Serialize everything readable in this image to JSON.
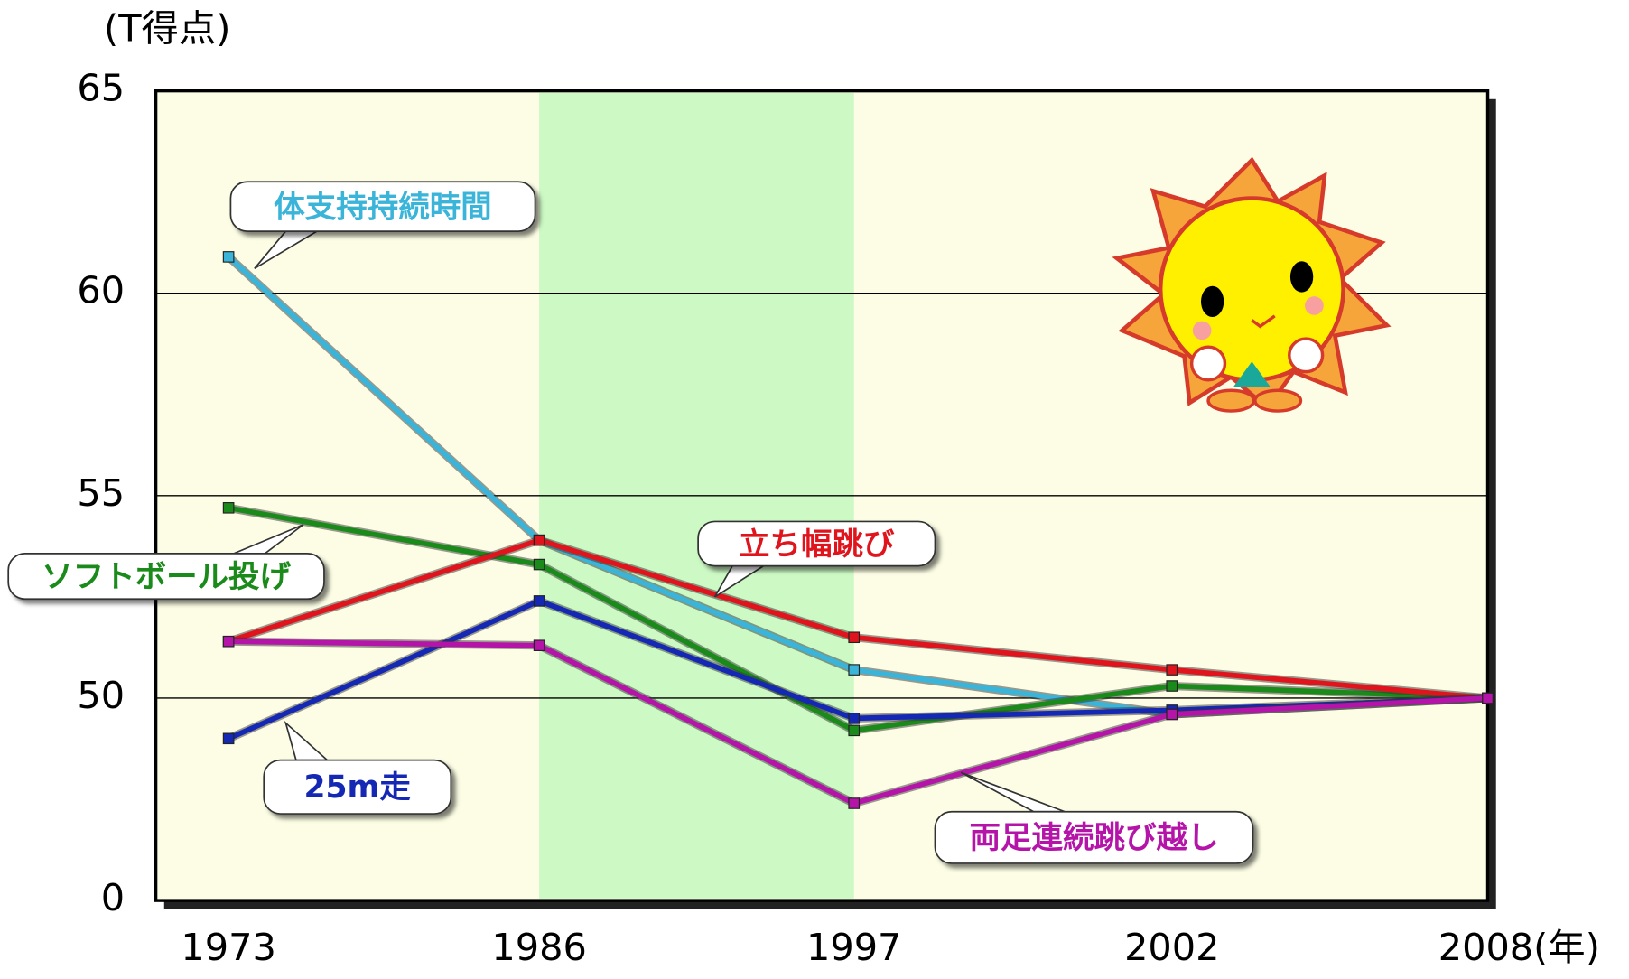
{
  "chart_data": {
    "type": "line",
    "y_unit_label": "(T得点)",
    "x_unit_label": "(年)",
    "categories": [
      "1973",
      "1986",
      "1997",
      "2002",
      "2008"
    ],
    "series": [
      {
        "name": "体支持持続時間",
        "color": "#3ab4d8",
        "values": [
          60.9,
          53.9,
          50.7,
          49.6,
          50
        ]
      },
      {
        "name": "ソフトボール投げ",
        "color": "#1a8a1a",
        "values": [
          54.7,
          53.3,
          49.2,
          50.3,
          50
        ]
      },
      {
        "name": "立ち幅跳び",
        "color": "#e0141c",
        "values": [
          51.4,
          53.9,
          51.5,
          50.7,
          50
        ]
      },
      {
        "name": "25m走",
        "color": "#1428b4",
        "values": [
          49.0,
          52.4,
          49.5,
          49.7,
          50
        ]
      },
      {
        "name": "両足連続跳び越し",
        "color": "#b414a8",
        "values": [
          51.4,
          51.3,
          47.4,
          49.6,
          50
        ]
      }
    ],
    "ylim": [
      0,
      65
    ],
    "y_break": [
      0,
      45
    ],
    "yticks": [
      0,
      50,
      55,
      60,
      65
    ],
    "grid": true
  }
}
